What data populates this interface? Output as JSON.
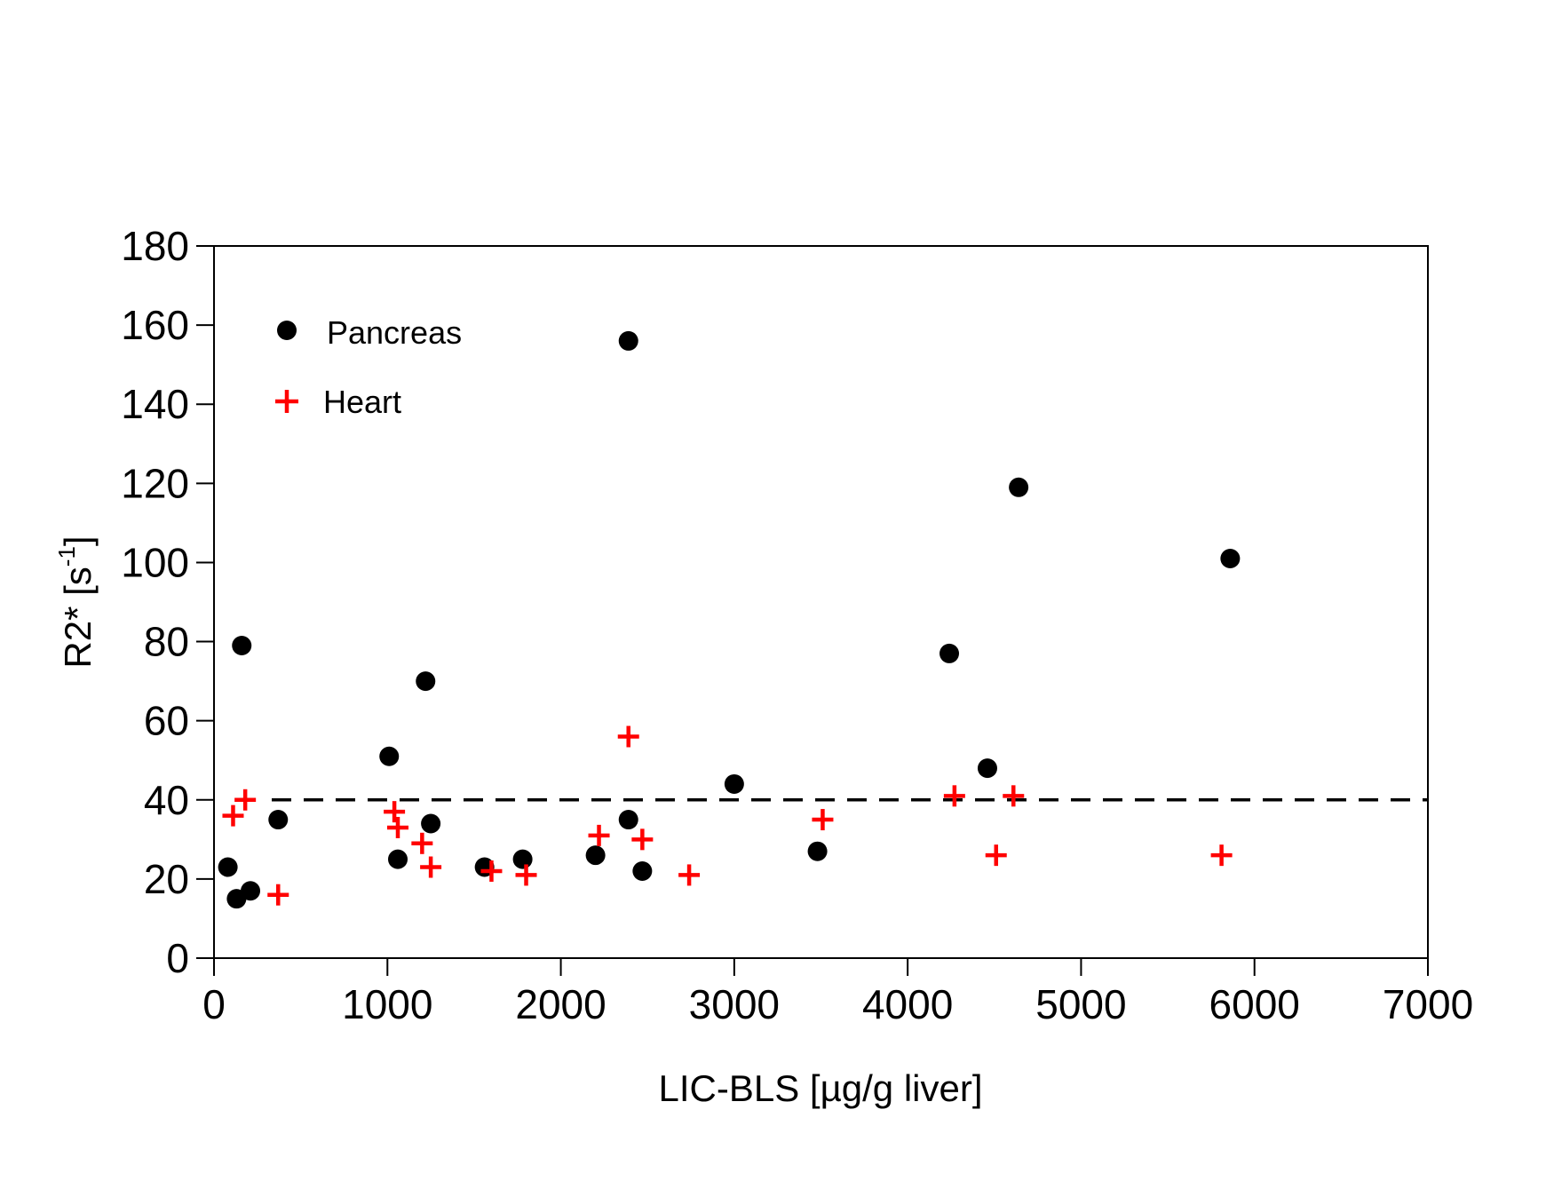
{
  "chart_data": {
    "type": "scatter",
    "title": "",
    "xlabel": "LIC-BLS [µg/g liver]",
    "ylabel": "R2* [s",
    "ylabel_sup": "-1",
    "ylabel_tail": "]",
    "xlim": [
      0,
      7000
    ],
    "ylim": [
      0,
      180
    ],
    "xticks": [
      0,
      1000,
      2000,
      3000,
      4000,
      5000,
      6000,
      7000
    ],
    "yticks": [
      0,
      20,
      40,
      60,
      80,
      100,
      120,
      140,
      160,
      180
    ],
    "reference_line": {
      "y": 40,
      "style": "dashed",
      "color": "#000000"
    },
    "legend_position": "top-left",
    "series": [
      {
        "name": "Pancreas",
        "marker": "circle",
        "color": "#000000",
        "points": [
          [
            80,
            23
          ],
          [
            130,
            15
          ],
          [
            160,
            79
          ],
          [
            210,
            17
          ],
          [
            370,
            35
          ],
          [
            1010,
            51
          ],
          [
            1060,
            25
          ],
          [
            1220,
            70
          ],
          [
            1250,
            34
          ],
          [
            1560,
            23
          ],
          [
            1780,
            25
          ],
          [
            2200,
            26
          ],
          [
            2390,
            156
          ],
          [
            2390,
            35
          ],
          [
            2470,
            22
          ],
          [
            3000,
            44
          ],
          [
            3480,
            27
          ],
          [
            4240,
            77
          ],
          [
            4460,
            48
          ],
          [
            4640,
            119
          ],
          [
            5860,
            101
          ]
        ]
      },
      {
        "name": "Heart",
        "marker": "plus",
        "color": "#ff0000",
        "points": [
          [
            110,
            36
          ],
          [
            180,
            40
          ],
          [
            370,
            16
          ],
          [
            1040,
            37
          ],
          [
            1060,
            33
          ],
          [
            1200,
            29
          ],
          [
            1250,
            23
          ],
          [
            1600,
            22
          ],
          [
            1800,
            21
          ],
          [
            2220,
            31
          ],
          [
            2390,
            56
          ],
          [
            2470,
            30
          ],
          [
            2740,
            21
          ],
          [
            3510,
            35
          ],
          [
            4270,
            41
          ],
          [
            4510,
            26
          ],
          [
            4610,
            41
          ],
          [
            5810,
            26
          ]
        ]
      }
    ]
  }
}
